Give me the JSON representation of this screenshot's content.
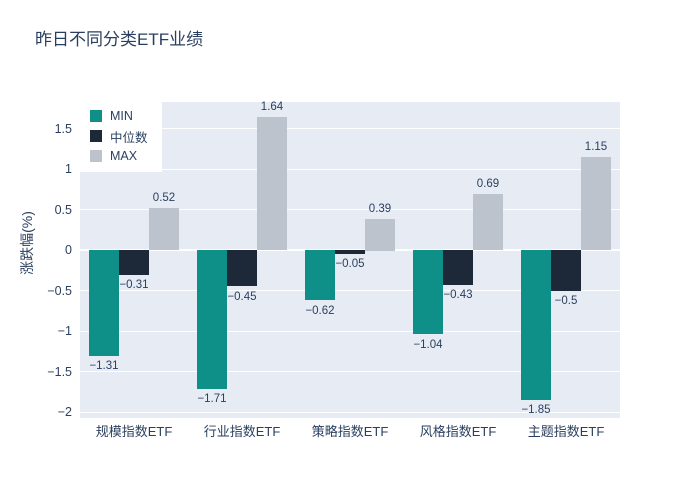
{
  "title": "昨日不同分类ETF业绩",
  "colors": {
    "background": "#ffffff",
    "plot_background": "#e7ecf4",
    "grid_line": "#ffffff",
    "text": "#2a3f5f",
    "min_bar": "#0e9089",
    "median_bar": "#1d2939",
    "max_bar": "#bdc3cc"
  },
  "chart_data": {
    "type": "bar",
    "title": "昨日不同分类ETF业绩",
    "ylabel": "涨跌幅(%)",
    "xlabel": "",
    "categories": [
      "规模指数ETF",
      "行业指数ETF",
      "策略指数ETF",
      "风格指数ETF",
      "主题指数ETF"
    ],
    "series": [
      {
        "name": "MIN",
        "color": "#0e9089",
        "values": [
          -1.31,
          -1.71,
          -0.62,
          -1.04,
          -1.85
        ]
      },
      {
        "name": "中位数",
        "color": "#1d2939",
        "values": [
          -0.31,
          -0.45,
          -0.05,
          -0.43,
          -0.5
        ]
      },
      {
        "name": "MAX",
        "color": "#bdc3cc",
        "values": [
          0.52,
          1.64,
          0.39,
          0.69,
          1.15
        ]
      }
    ],
    "yticks": [
      -2,
      -1.5,
      -1,
      -0.5,
      0,
      0.5,
      1,
      1.5
    ],
    "ylim": [
      -2.07,
      1.83
    ],
    "grid": true,
    "legend_position": "top-left",
    "value_labels_shown": true
  }
}
